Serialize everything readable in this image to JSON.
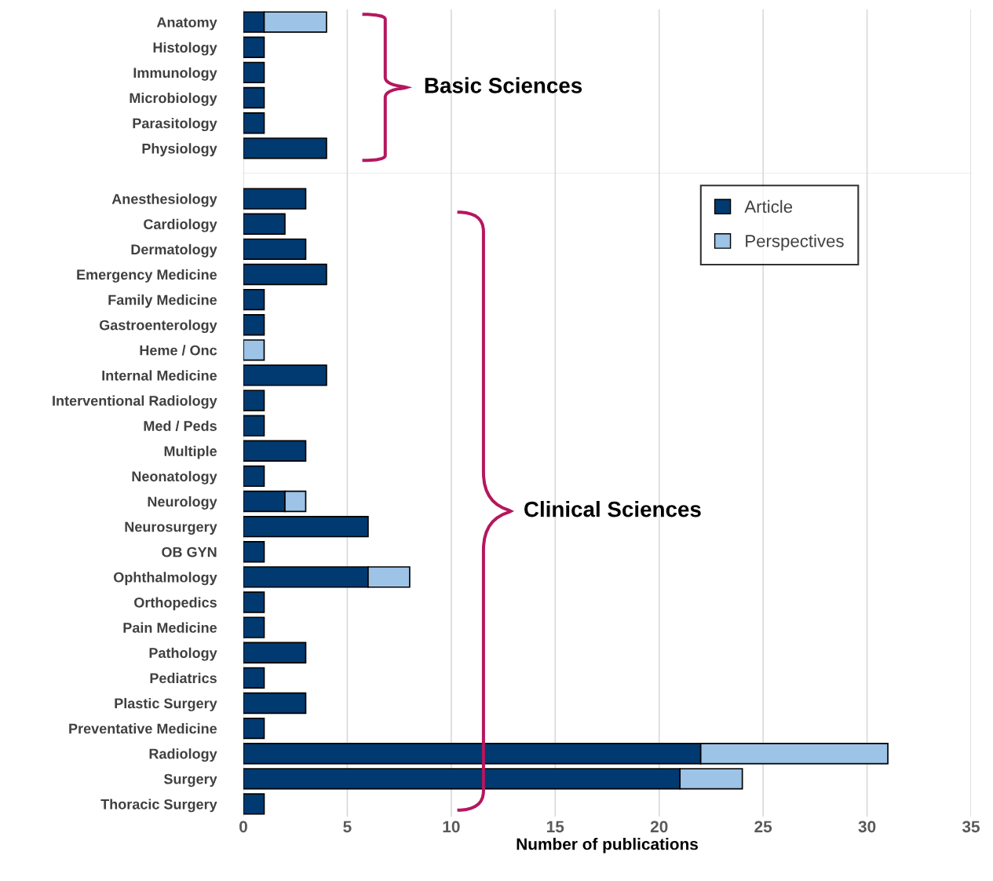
{
  "chart_data": [
    {
      "type": "bar",
      "orientation": "horizontal",
      "stacked": true,
      "categories": [
        "Anatomy",
        "Histology",
        "Immunology",
        "Microbiology",
        "Parasitology",
        "Physiology"
      ],
      "series": [
        {
          "color": "#003a70",
          "values": [
            1,
            1,
            1,
            1,
            1,
            4
          ]
        },
        {
          "color": "#9dc3e6",
          "values": [
            3,
            null,
            null,
            null,
            null,
            null
          ]
        }
      ],
      "xlim": [
        0,
        35
      ],
      "xticks": [
        0,
        5,
        10,
        15,
        20,
        25,
        30,
        35
      ],
      "grid": "x",
      "tick_labels": "y",
      "legend": false,
      "annotations": [
        "Basic Sciences"
      ]
    },
    {
      "type": "bar",
      "orientation": "horizontal",
      "stacked": true,
      "categories": [
        "Anesthesiology",
        "Cardiology",
        "Dermatology",
        "Emergency Medicine",
        "Family Medicine",
        "Gastroenterology",
        "Heme / Onc",
        "Internal Medicine",
        "Interventional Radiology",
        "Med / Peds",
        "Multiple",
        "Neonatology",
        "Neurology",
        "Neurosurgery",
        "OB GYN",
        "Ophthalmology",
        "Orthopedics",
        "Pain Medicine",
        "Pathology",
        "Pediatrics",
        "Plastic Surgery",
        "Preventative Medicine",
        "Radiology",
        "Surgery",
        "Thoracic Surgery"
      ],
      "series": [
        {
          "name": "Article",
          "color": "#003a70",
          "values": [
            3,
            2,
            3,
            4,
            1,
            1,
            null,
            4,
            1,
            1,
            3,
            1,
            2,
            6,
            1,
            6,
            1,
            1,
            3,
            1,
            3,
            1,
            22,
            21,
            1
          ]
        },
        {
          "name": "Perspectives",
          "color": "#9dc3e6",
          "values": [
            null,
            null,
            null,
            null,
            null,
            null,
            1,
            null,
            null,
            null,
            null,
            null,
            1,
            null,
            null,
            2,
            null,
            null,
            null,
            null,
            null,
            null,
            9,
            3,
            null
          ]
        }
      ],
      "xlim": [
        0,
        35
      ],
      "xticks": [
        0,
        5,
        10,
        15,
        20,
        25,
        30,
        35
      ],
      "grid": "x",
      "legend": "top right",
      "xlabel": "Number of publications",
      "annotations": [
        "Clinical Sciences"
      ]
    }
  ]
}
